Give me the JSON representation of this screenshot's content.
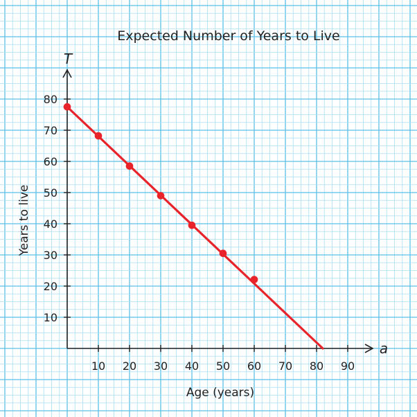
{
  "colors": {
    "paper": "#ffffff",
    "grid_minor": "#a9def3",
    "grid_major": "#5bbfe8",
    "axis": "#222222",
    "line": "#e8232a",
    "marker": "#e8232a",
    "text": "#222222"
  },
  "chart_data": {
    "type": "line",
    "title": "Expected Number of Years to Live",
    "xlabel": "Age (years)",
    "ylabel": "Years to live",
    "x_axis_var": "a",
    "y_axis_var": "T",
    "xlim": [
      0,
      90
    ],
    "ylim": [
      0,
      80
    ],
    "x_ticks": [
      10,
      20,
      30,
      40,
      50,
      60,
      70,
      80,
      90
    ],
    "y_ticks": [
      10,
      20,
      30,
      40,
      50,
      60,
      70,
      80
    ],
    "grid": true,
    "series": [
      {
        "points": [
          {
            "x": 0,
            "y": 77.5
          },
          {
            "x": 10,
            "y": 68.2
          },
          {
            "x": 20,
            "y": 58.5
          },
          {
            "x": 30,
            "y": 49.0
          },
          {
            "x": 40,
            "y": 39.5
          },
          {
            "x": 50,
            "y": 30.5
          },
          {
            "x": 60,
            "y": 22.1
          }
        ],
        "trend_line": {
          "from": [
            0,
            77.5
          ],
          "to": [
            82,
            0
          ]
        }
      }
    ]
  }
}
